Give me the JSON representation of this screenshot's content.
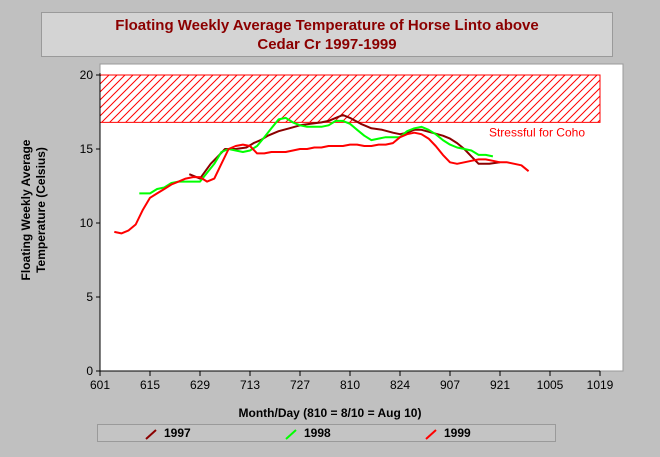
{
  "title_lines": [
    "Floating Weekly Average Temperature of Horse Linto above",
    "Cedar Cr 1997-1999"
  ],
  "chart_data": {
    "type": "line",
    "title": "Floating Weekly Average Temperature of Horse Linto above Cedar Cr 1997-1999",
    "xlabel": "Month/Day (810 = 8/10 = Aug 10)",
    "ylabel_lines": [
      "Floating Weekly Average",
      "Temperature (Celsius)"
    ],
    "x_ticks": [
      "601",
      "615",
      "629",
      "713",
      "727",
      "810",
      "824",
      "907",
      "921",
      "1005",
      "1019"
    ],
    "y_ticks": [
      "0",
      "5",
      "10",
      "15",
      "20"
    ],
    "xlim_days": [
      0,
      140
    ],
    "ylim": [
      0,
      20
    ],
    "threshold": {
      "label": "Stressful for Coho",
      "lower": 16.8,
      "upper": 20,
      "color": "#ff0000"
    },
    "series": [
      {
        "name": "1997",
        "color": "#8b0000",
        "x_days": [
          25,
          28,
          31,
          33,
          35,
          38,
          41,
          43,
          45,
          47,
          50,
          53,
          56,
          59,
          62,
          64,
          66,
          68,
          70,
          73,
          76,
          79,
          82,
          84,
          86,
          88,
          90,
          93,
          96,
          98,
          100,
          102,
          104,
          106,
          109,
          112
        ],
        "values": [
          13.3,
          13.0,
          14.0,
          14.5,
          15.0,
          15.0,
          15.1,
          15.4,
          15.6,
          15.9,
          16.2,
          16.4,
          16.6,
          16.7,
          16.8,
          16.9,
          17.1,
          17.3,
          17.1,
          16.7,
          16.4,
          16.3,
          16.1,
          16.0,
          16.1,
          16.3,
          16.3,
          16.1,
          15.9,
          15.7,
          15.4,
          15.0,
          14.5,
          14.0,
          14.0,
          14.1
        ]
      },
      {
        "name": "1998",
        "color": "#00ff00",
        "x_days": [
          11,
          14,
          16,
          18,
          20,
          22,
          24,
          26,
          28,
          30,
          32,
          34,
          36,
          38,
          40,
          42,
          44,
          46,
          48,
          50,
          52,
          54,
          56,
          58,
          60,
          62,
          64,
          66,
          68,
          70,
          72,
          74,
          76,
          78,
          80,
          82,
          84,
          86,
          88,
          90,
          92,
          94,
          96,
          98,
          100,
          102,
          104,
          106,
          108,
          110
        ],
        "values": [
          12.0,
          12.0,
          12.3,
          12.4,
          12.7,
          12.8,
          12.8,
          12.8,
          12.8,
          13.4,
          14.0,
          14.8,
          15.0,
          14.9,
          14.8,
          14.9,
          15.2,
          15.8,
          16.4,
          17.0,
          17.1,
          16.8,
          16.6,
          16.5,
          16.5,
          16.5,
          16.6,
          16.9,
          16.9,
          16.7,
          16.3,
          15.9,
          15.6,
          15.7,
          15.8,
          15.8,
          15.8,
          16.2,
          16.4,
          16.5,
          16.3,
          16.0,
          15.6,
          15.3,
          15.1,
          15.0,
          14.9,
          14.6,
          14.6,
          14.5
        ],
        "truncated": true
      },
      {
        "name": "1999",
        "color": "#ff0000",
        "x_days": [
          4,
          6,
          8,
          10,
          12,
          14,
          16,
          18,
          20,
          22,
          24,
          26,
          28,
          30,
          32,
          34,
          36,
          38,
          40,
          42,
          44,
          46,
          48,
          50,
          52,
          54,
          56,
          58,
          60,
          62,
          64,
          66,
          68,
          70,
          72,
          74,
          76,
          78,
          80,
          82,
          84,
          86,
          88,
          90,
          92,
          94,
          96,
          98,
          100,
          102,
          104,
          106,
          108,
          110,
          112,
          114,
          116,
          118,
          120
        ],
        "values": [
          9.4,
          9.3,
          9.5,
          9.9,
          10.9,
          11.7,
          12.0,
          12.3,
          12.6,
          12.8,
          13.0,
          13.1,
          13.1,
          12.8,
          13.0,
          14.0,
          15.0,
          15.2,
          15.3,
          15.2,
          14.7,
          14.7,
          14.8,
          14.8,
          14.8,
          14.9,
          15.0,
          15.0,
          15.1,
          15.1,
          15.2,
          15.2,
          15.2,
          15.3,
          15.3,
          15.2,
          15.2,
          15.3,
          15.3,
          15.4,
          15.8,
          16.0,
          16.1,
          16.0,
          15.7,
          15.2,
          14.6,
          14.1,
          14.0,
          14.1,
          14.2,
          14.3,
          14.3,
          14.2,
          14.1,
          14.1,
          14.0,
          13.9,
          13.5
        ]
      }
    ],
    "grid": false,
    "legend": "bottom"
  }
}
